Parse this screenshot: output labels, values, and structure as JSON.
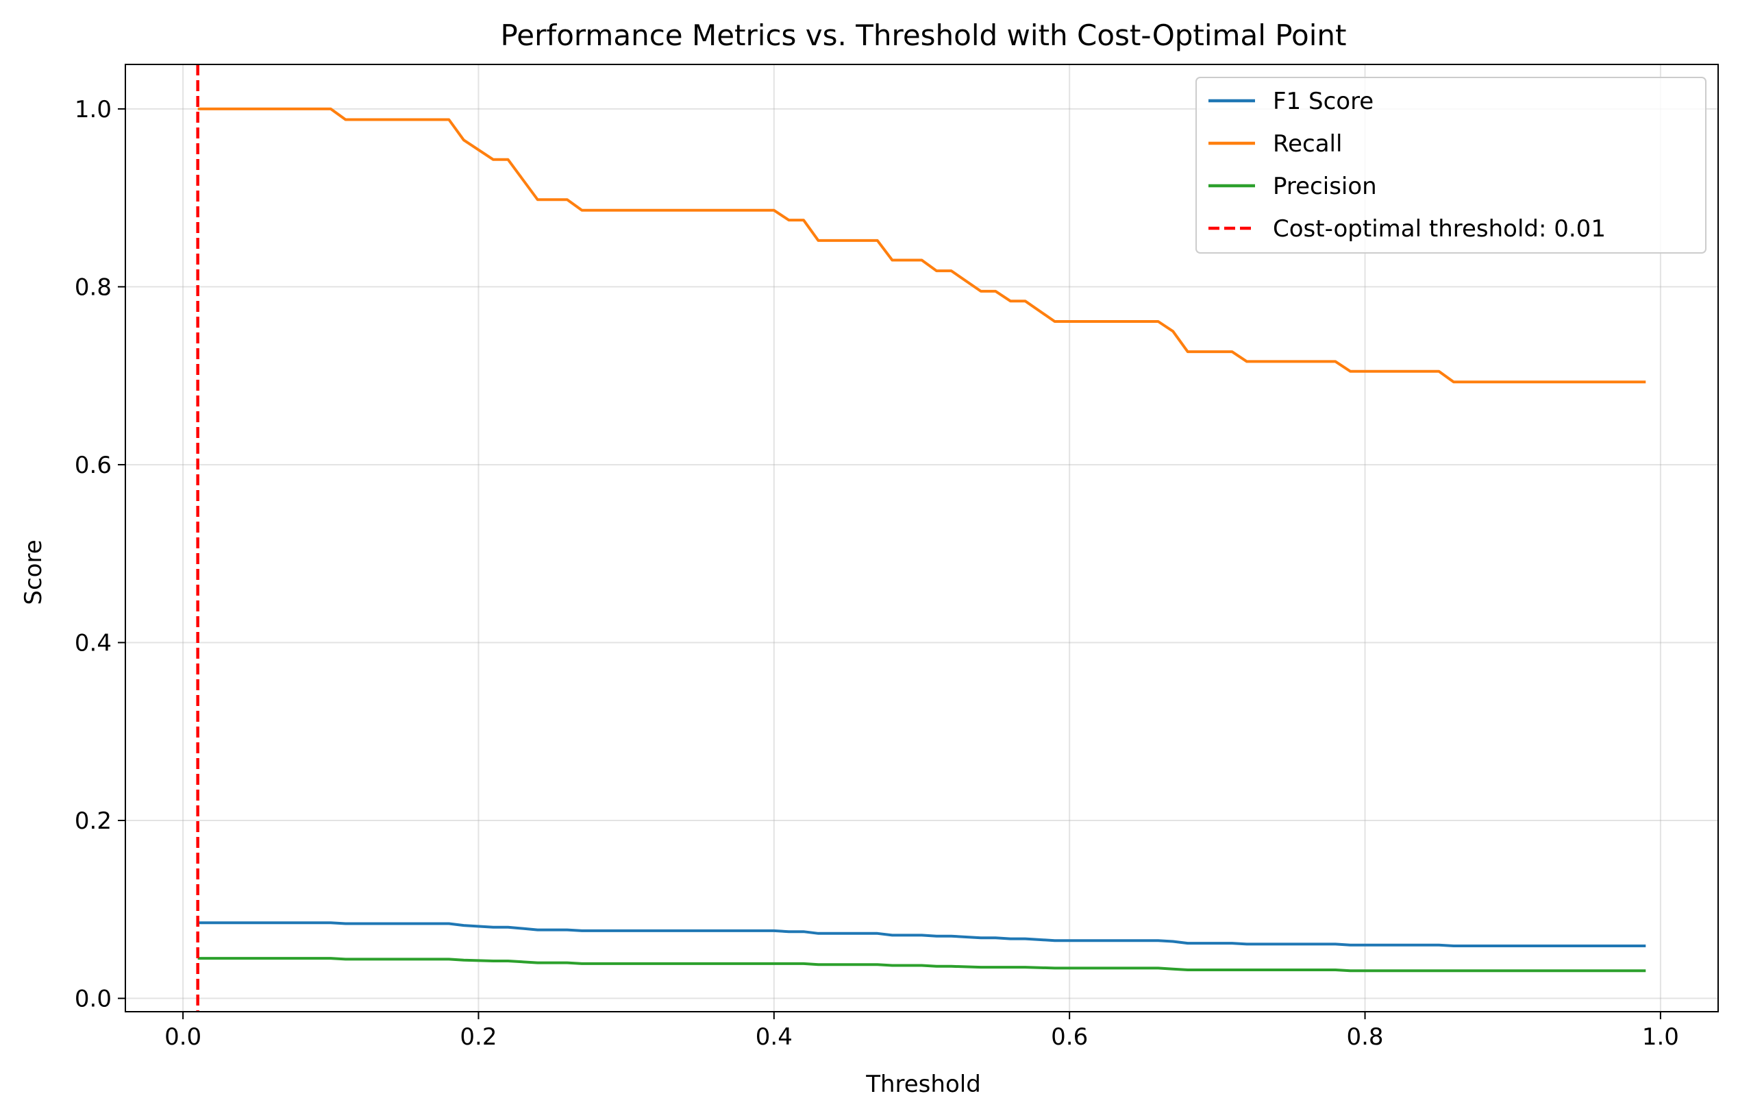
{
  "chart_data": {
    "type": "line",
    "title": "Performance Metrics vs. Threshold with Cost-Optimal Point",
    "xlabel": "Threshold",
    "ylabel": "Score",
    "xlim": [
      -0.039,
      1.039
    ],
    "ylim": [
      -0.015,
      1.05
    ],
    "xticks": [
      0.0,
      0.2,
      0.4,
      0.6,
      0.8,
      1.0
    ],
    "xtick_labels": [
      "0.0",
      "0.2",
      "0.4",
      "0.6",
      "0.8",
      "1.0"
    ],
    "yticks": [
      0.0,
      0.2,
      0.4,
      0.6,
      0.8,
      1.0
    ],
    "ytick_labels": [
      "0.0",
      "0.2",
      "0.4",
      "0.6",
      "0.8",
      "1.0"
    ],
    "grid": true,
    "legend_position": "top-right",
    "series": [
      {
        "name": "F1 Score",
        "color": "#1f77b4",
        "points": [
          [
            0.01,
            0.085
          ],
          [
            0.1,
            0.085
          ],
          [
            0.11,
            0.084
          ],
          [
            0.18,
            0.084
          ],
          [
            0.19,
            0.082
          ],
          [
            0.21,
            0.08
          ],
          [
            0.22,
            0.08
          ],
          [
            0.24,
            0.077
          ],
          [
            0.26,
            0.077
          ],
          [
            0.27,
            0.076
          ],
          [
            0.4,
            0.076
          ],
          [
            0.41,
            0.075
          ],
          [
            0.42,
            0.075
          ],
          [
            0.43,
            0.073
          ],
          [
            0.47,
            0.073
          ],
          [
            0.48,
            0.071
          ],
          [
            0.5,
            0.071
          ],
          [
            0.51,
            0.07
          ],
          [
            0.52,
            0.07
          ],
          [
            0.54,
            0.068
          ],
          [
            0.55,
            0.068
          ],
          [
            0.56,
            0.067
          ],
          [
            0.57,
            0.067
          ],
          [
            0.59,
            0.065
          ],
          [
            0.66,
            0.065
          ],
          [
            0.67,
            0.064
          ],
          [
            0.68,
            0.062
          ],
          [
            0.71,
            0.062
          ],
          [
            0.72,
            0.061
          ],
          [
            0.78,
            0.061
          ],
          [
            0.79,
            0.06
          ],
          [
            0.85,
            0.06
          ],
          [
            0.86,
            0.059
          ],
          [
            0.99,
            0.059
          ]
        ]
      },
      {
        "name": "Recall",
        "color": "#ff7f0e",
        "points": [
          [
            0.01,
            1.0
          ],
          [
            0.1,
            1.0
          ],
          [
            0.11,
            0.988
          ],
          [
            0.18,
            0.988
          ],
          [
            0.19,
            0.965
          ],
          [
            0.21,
            0.943
          ],
          [
            0.22,
            0.943
          ],
          [
            0.24,
            0.898
          ],
          [
            0.26,
            0.898
          ],
          [
            0.27,
            0.886
          ],
          [
            0.4,
            0.886
          ],
          [
            0.41,
            0.875
          ],
          [
            0.42,
            0.875
          ],
          [
            0.43,
            0.852
          ],
          [
            0.47,
            0.852
          ],
          [
            0.48,
            0.83
          ],
          [
            0.5,
            0.83
          ],
          [
            0.51,
            0.818
          ],
          [
            0.52,
            0.818
          ],
          [
            0.54,
            0.795
          ],
          [
            0.55,
            0.795
          ],
          [
            0.56,
            0.784
          ],
          [
            0.57,
            0.784
          ],
          [
            0.59,
            0.761
          ],
          [
            0.66,
            0.761
          ],
          [
            0.67,
            0.75
          ],
          [
            0.68,
            0.727
          ],
          [
            0.71,
            0.727
          ],
          [
            0.72,
            0.716
          ],
          [
            0.78,
            0.716
          ],
          [
            0.79,
            0.705
          ],
          [
            0.85,
            0.705
          ],
          [
            0.86,
            0.693
          ],
          [
            0.99,
            0.693
          ]
        ]
      },
      {
        "name": "Precision",
        "color": "#2ca02c",
        "points": [
          [
            0.01,
            0.045
          ],
          [
            0.1,
            0.045
          ],
          [
            0.11,
            0.044
          ],
          [
            0.18,
            0.044
          ],
          [
            0.19,
            0.043
          ],
          [
            0.21,
            0.042
          ],
          [
            0.22,
            0.042
          ],
          [
            0.24,
            0.04
          ],
          [
            0.26,
            0.04
          ],
          [
            0.27,
            0.039
          ],
          [
            0.4,
            0.039
          ],
          [
            0.41,
            0.039
          ],
          [
            0.42,
            0.039
          ],
          [
            0.43,
            0.038
          ],
          [
            0.47,
            0.038
          ],
          [
            0.48,
            0.037
          ],
          [
            0.5,
            0.037
          ],
          [
            0.51,
            0.036
          ],
          [
            0.52,
            0.036
          ],
          [
            0.54,
            0.035
          ],
          [
            0.55,
            0.035
          ],
          [
            0.56,
            0.035
          ],
          [
            0.57,
            0.035
          ],
          [
            0.59,
            0.034
          ],
          [
            0.66,
            0.034
          ],
          [
            0.67,
            0.033
          ],
          [
            0.68,
            0.032
          ],
          [
            0.71,
            0.032
          ],
          [
            0.72,
            0.032
          ],
          [
            0.78,
            0.032
          ],
          [
            0.79,
            0.031
          ],
          [
            0.85,
            0.031
          ],
          [
            0.86,
            0.031
          ],
          [
            0.99,
            0.031
          ]
        ]
      }
    ],
    "vline": {
      "x": 0.01,
      "color": "#ff0000",
      "label": "Cost-optimal threshold: 0.01"
    }
  }
}
